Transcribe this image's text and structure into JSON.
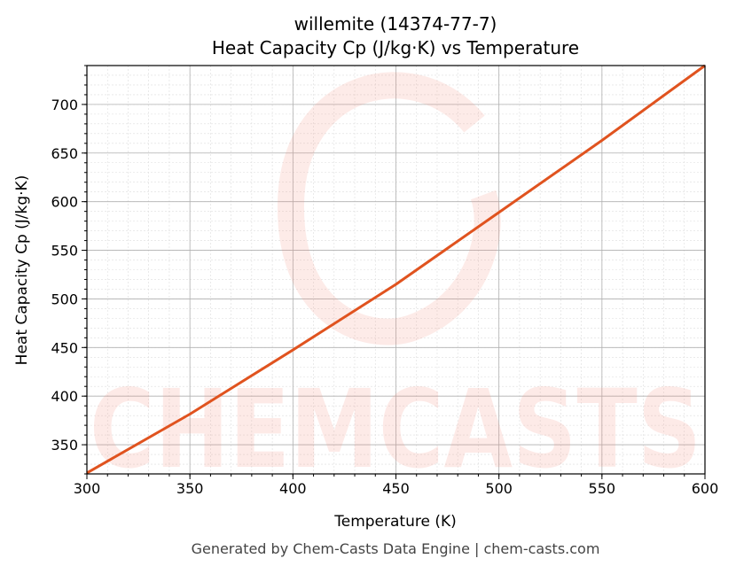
{
  "chart_data": {
    "type": "line",
    "title": "willemite (14374-77-7)",
    "subtitle": "Heat Capacity Cp (J/kg·K) vs Temperature",
    "xlabel": "Temperature (K)",
    "ylabel": "Heat Capacity Cp (J/kg·K)",
    "xlim": [
      300,
      600
    ],
    "ylim": [
      320,
      740
    ],
    "xticks": [
      300,
      350,
      400,
      450,
      500,
      550,
      600
    ],
    "yticks": [
      350,
      400,
      450,
      500,
      550,
      600,
      650,
      700
    ],
    "grid": true,
    "minor_grid": true,
    "series": [
      {
        "color": "#e0531f",
        "x": [
          300,
          350,
          400,
          450,
          500,
          550,
          600
        ],
        "y": [
          321,
          381.5,
          447.5,
          515,
          589,
          663,
          740
        ]
      }
    ]
  },
  "watermark": "CHEMCASTS",
  "footer": "Generated by Chem-Casts Data Engine | chem-casts.com"
}
